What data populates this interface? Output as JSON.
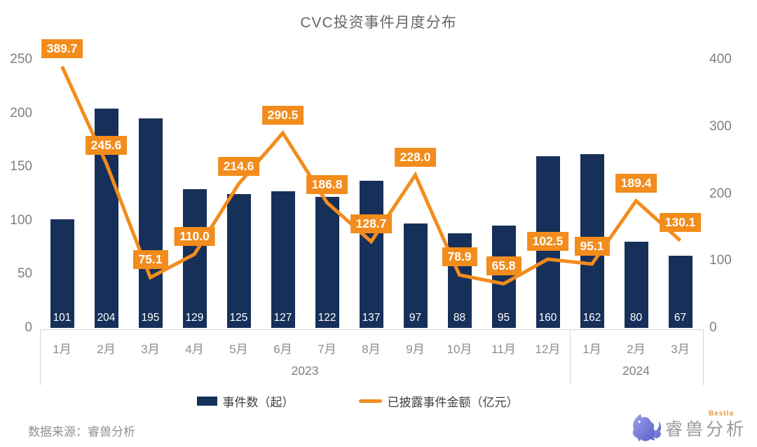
{
  "title": "CVC投资事件月度分布",
  "chart_data": {
    "type": "bar",
    "subtype": "combo-bar-line-dual-axis",
    "categories": [
      "1月",
      "2月",
      "3月",
      "4月",
      "5月",
      "6月",
      "7月",
      "8月",
      "9月",
      "10月",
      "11月",
      "12月",
      "1月",
      "2月",
      "3月"
    ],
    "year_groups": [
      {
        "label": "2023",
        "span": 12
      },
      {
        "label": "2024",
        "span": 3
      }
    ],
    "series": [
      {
        "name": "事件数（起）",
        "type": "bar",
        "axis": "left",
        "color": "#17305a",
        "values": [
          101,
          204,
          195,
          129,
          125,
          127,
          122,
          137,
          97,
          88,
          95,
          160,
          162,
          80,
          67
        ]
      },
      {
        "name": "已披露事件金额（亿元）",
        "type": "line",
        "axis": "right",
        "color": "#f28c1c",
        "values": [
          389.7,
          245.6,
          75.1,
          110.0,
          214.6,
          290.5,
          186.8,
          128.7,
          228.0,
          78.9,
          65.8,
          102.5,
          95.1,
          189.4,
          130.1
        ]
      }
    ],
    "left_axis": {
      "ticks": [
        0,
        50,
        100,
        150,
        200,
        250
      ],
      "max": 250
    },
    "right_axis": {
      "ticks": [
        0,
        100,
        200,
        300,
        400
      ],
      "max": 400
    },
    "grid": false,
    "legend_position": "bottom"
  },
  "footer": {
    "source": "数据来源：睿兽分析",
    "logo_text": "睿兽分析",
    "logo_sub": "Bestla"
  },
  "colors": {
    "bar": "#17305a",
    "line": "#f28c1c",
    "axis_text": "#7f7f7f",
    "title_text": "#666666",
    "border": "#d6d6d6"
  }
}
